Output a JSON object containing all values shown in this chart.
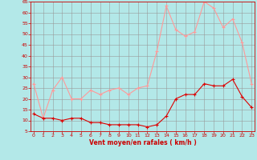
{
  "hours": [
    0,
    1,
    2,
    3,
    4,
    5,
    6,
    7,
    8,
    9,
    10,
    11,
    12,
    13,
    14,
    15,
    16,
    17,
    18,
    19,
    20,
    21,
    22,
    23
  ],
  "wind_avg": [
    13,
    11,
    11,
    10,
    11,
    11,
    9,
    9,
    8,
    8,
    8,
    8,
    7,
    8,
    12,
    20,
    22,
    22,
    27,
    26,
    26,
    29,
    21,
    16
  ],
  "wind_gust": [
    27,
    11,
    24,
    30,
    20,
    20,
    24,
    22,
    24,
    25,
    22,
    25,
    26,
    42,
    63,
    52,
    49,
    51,
    65,
    62,
    53,
    57,
    46,
    27
  ],
  "bg_color": "#b3e8e8",
  "grid_color": "#999999",
  "line_avg_color": "#dd0000",
  "line_gust_color": "#ff9999",
  "xlabel": "Vent moyen/en rafales ( km/h )",
  "xlabel_color": "#cc0000",
  "tick_color": "#cc0000",
  "ylim": [
    5,
    65
  ],
  "yticks": [
    5,
    10,
    15,
    20,
    25,
    30,
    35,
    40,
    45,
    50,
    55,
    60,
    65
  ],
  "xticks": [
    0,
    1,
    2,
    3,
    4,
    5,
    6,
    7,
    8,
    9,
    10,
    11,
    12,
    13,
    14,
    15,
    16,
    17,
    18,
    19,
    20,
    21,
    22,
    23
  ],
  "xlim": [
    -0.3,
    23.3
  ],
  "spine_color": "#cc0000",
  "marker_size": 2.5,
  "linewidth": 0.8
}
